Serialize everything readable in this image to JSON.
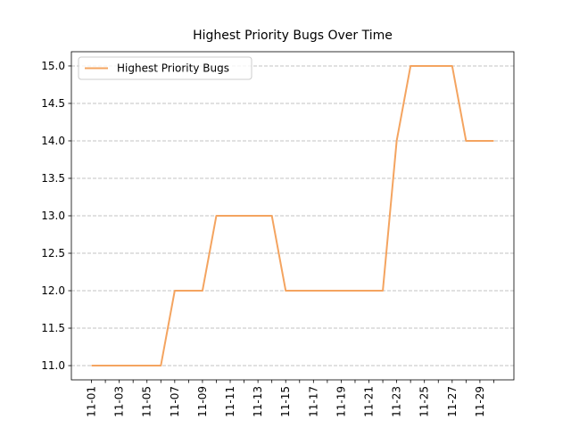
{
  "chart_data": {
    "type": "line",
    "title": "Highest Priority Bugs Over Time",
    "categories": [
      "11-01",
      null,
      "11-03",
      null,
      "11-05",
      null,
      "11-07",
      null,
      "11-09",
      null,
      "11-11",
      null,
      "11-13",
      null,
      "11-15",
      null,
      "11-17",
      null,
      "11-19",
      null,
      "11-21",
      null,
      "11-23",
      null,
      "11-25",
      null,
      "11-27",
      null,
      "11-29",
      null
    ],
    "series": [
      {
        "name": "Highest Priority Bugs",
        "color": "#f4a460",
        "values": [
          11,
          11,
          11,
          11,
          11,
          11,
          12,
          12,
          12,
          13,
          13,
          13,
          13,
          13,
          12,
          12,
          12,
          12,
          12,
          12,
          12,
          12,
          14,
          15,
          15,
          15,
          15,
          14,
          14,
          14
        ]
      }
    ],
    "ylim": [
      10.81,
      15.19
    ],
    "yticks": [
      {
        "value": 11,
        "label": "11.0"
      },
      {
        "value": 11.5,
        "label": "11.5"
      },
      {
        "value": 12,
        "label": "12.0"
      },
      {
        "value": 12.5,
        "label": "12.5"
      },
      {
        "value": 13,
        "label": "13.0"
      },
      {
        "value": 13.5,
        "label": "13.5"
      },
      {
        "value": 14,
        "label": "14.0"
      },
      {
        "value": 14.5,
        "label": "14.5"
      },
      {
        "value": 15,
        "label": "15.0"
      }
    ],
    "grid": true,
    "grid_axis": "y",
    "legend": "upper left"
  }
}
